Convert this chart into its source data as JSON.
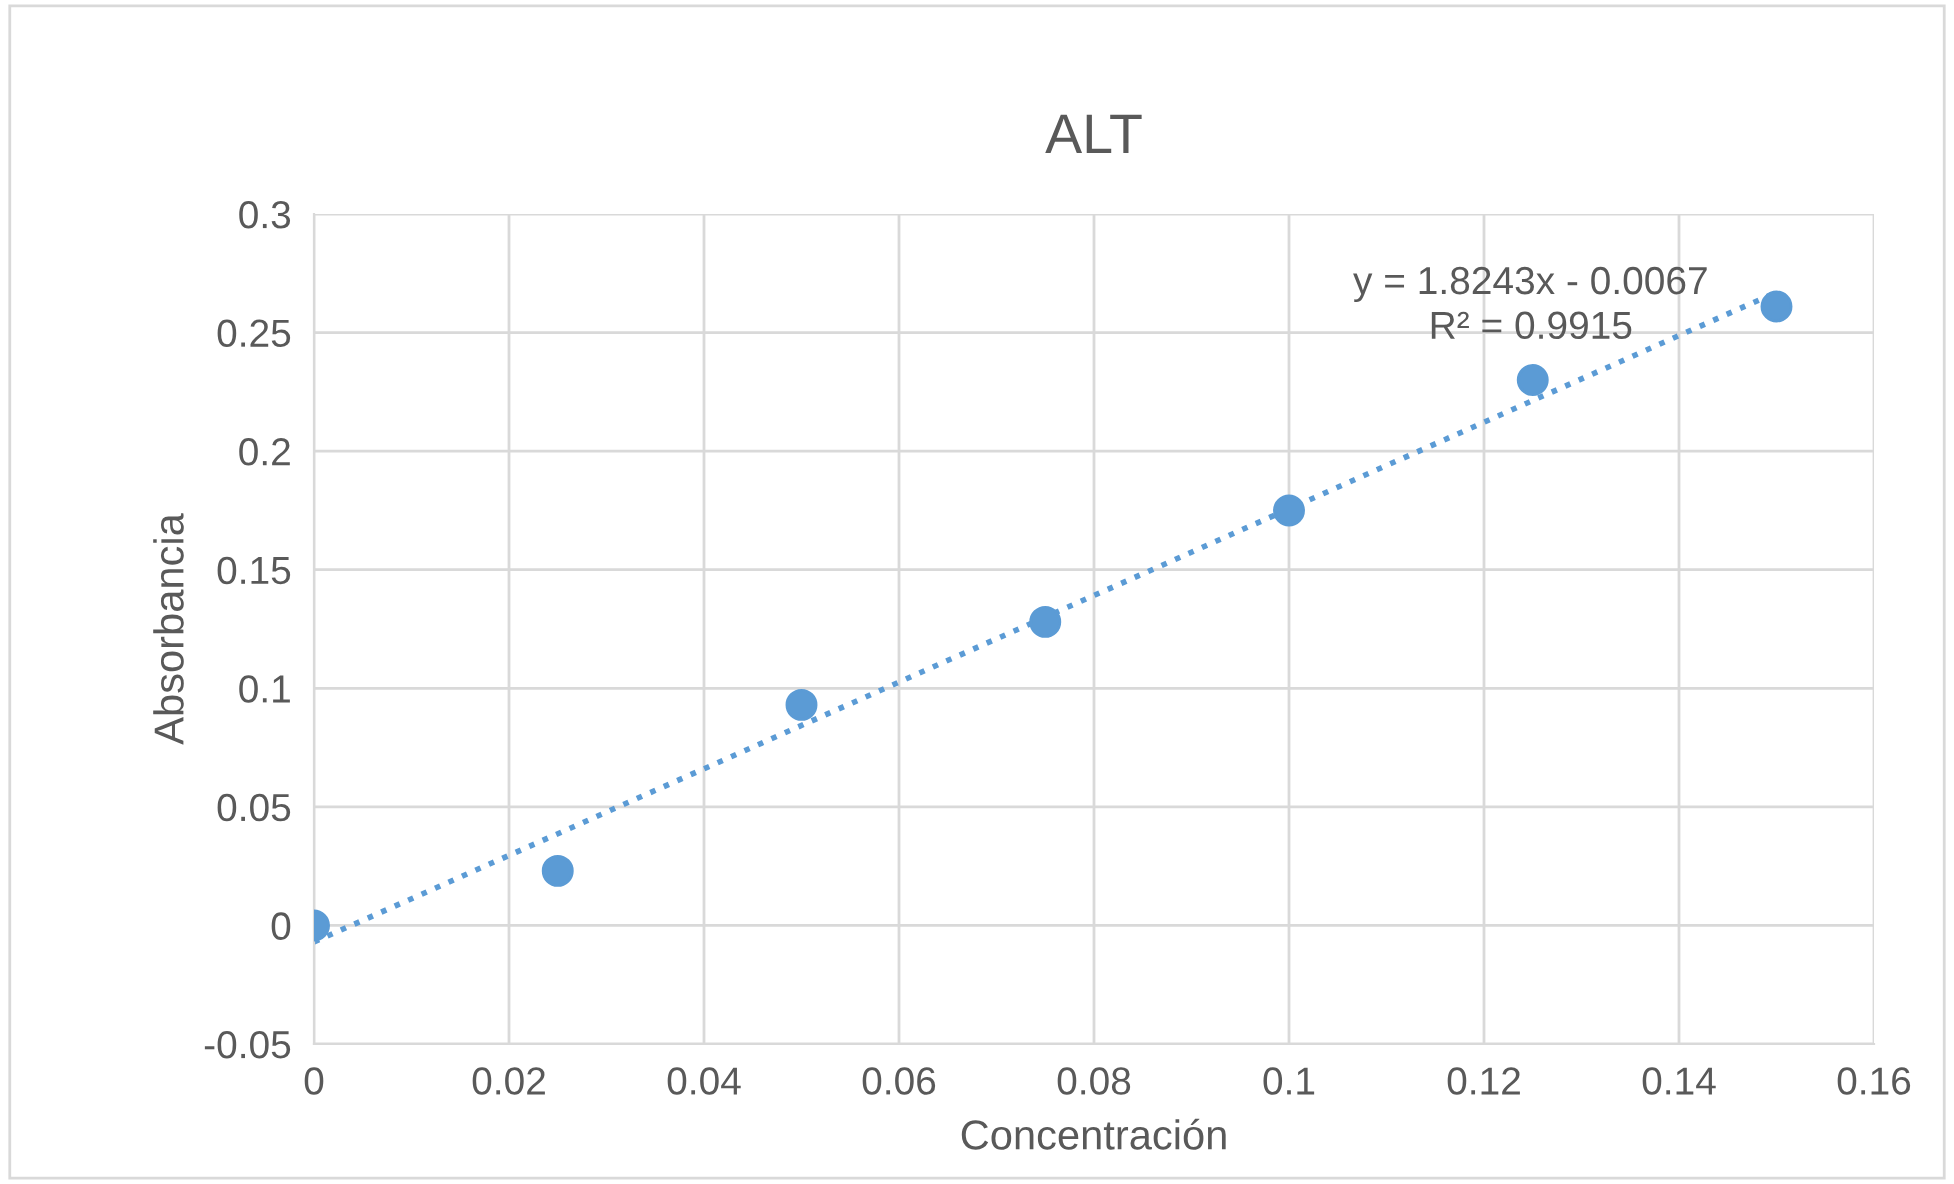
{
  "chart_data": {
    "type": "scatter",
    "title": "ALT",
    "xlabel": "Concentración",
    "ylabel": "Absorbancia",
    "x": [
      0,
      0.025,
      0.05,
      0.075,
      0.1,
      0.125,
      0.15
    ],
    "series": [
      {
        "color": "#5b9bd5",
        "values": [
          0,
          0.023,
          0.093,
          0.128,
          0.175,
          0.23,
          0.261
        ],
        "marker": "circle"
      },
      {
        "type": "line",
        "color": "#5b9bd5",
        "x": [
          0,
          0.15
        ],
        "values": [
          -0.007,
          0.267
        ],
        "line_style": "dotted",
        "marker": "none"
      }
    ],
    "annotations": [
      "y = 1.8243x - 0.0067\nR² = 0.9915"
    ],
    "xlim": [
      0,
      0.16
    ],
    "xticks": [
      0,
      0.02,
      0.04,
      0.06,
      0.08,
      0.1,
      0.12,
      0.14,
      0.16
    ],
    "ylim": [
      -0.05,
      0.3
    ],
    "yticks": [
      -0.05,
      0,
      0.05,
      0.1,
      0.15,
      0.2,
      0.25,
      0.3
    ],
    "grid": true,
    "legend": false
  }
}
